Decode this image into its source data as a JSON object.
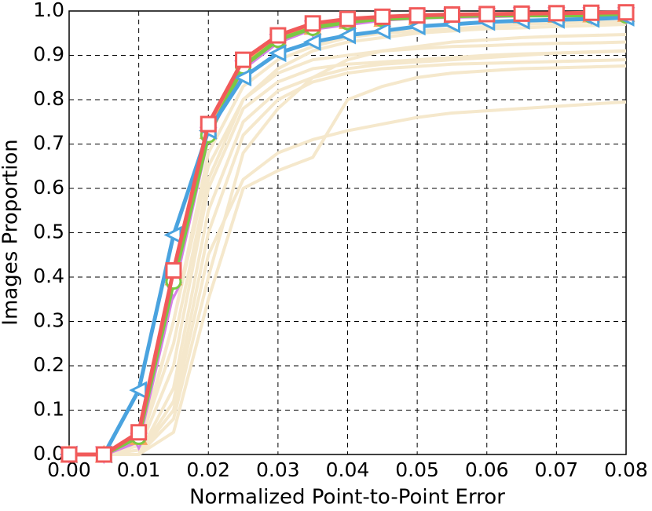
{
  "chart_data": {
    "type": "line",
    "x_label": "Normalized Point-to-Point Error",
    "y_label": "Images Proportion",
    "x": [
      0,
      0.005,
      0.01,
      0.015,
      0.02,
      0.025,
      0.03,
      0.035,
      0.04,
      0.045,
      0.05,
      0.055,
      0.06,
      0.065,
      0.07,
      0.075,
      0.08
    ],
    "xlim": [
      0,
      0.08
    ],
    "ylim": [
      0,
      1
    ],
    "xticks": [
      {
        "value": 0,
        "label": "0.00"
      },
      {
        "value": 0.01,
        "label": "0.01"
      },
      {
        "value": 0.02,
        "label": "0.02"
      },
      {
        "value": 0.03,
        "label": "0.03"
      },
      {
        "value": 0.04,
        "label": "0.04"
      },
      {
        "value": 0.05,
        "label": "0.05"
      },
      {
        "value": 0.06,
        "label": "0.06"
      },
      {
        "value": 0.07,
        "label": "0.07"
      },
      {
        "value": 0.08,
        "label": "0.08"
      }
    ],
    "yticks": [
      {
        "value": 0,
        "label": "0.0"
      },
      0.1,
      0.2,
      0.3,
      0.4,
      0.5,
      0.6,
      0.7,
      0.8,
      0.9,
      {
        "value": 1,
        "label": "1.0"
      }
    ],
    "grid": true,
    "series": [
      {
        "color": "#f5e8cc",
        "values": [
          0,
          0,
          0,
          0.1,
          0.45,
          0.62,
          0.68,
          0.71,
          0.73,
          0.745,
          0.76,
          0.77,
          0.775,
          0.78,
          0.785,
          0.79,
          0.795
        ]
      },
      {
        "color": "#f5e8cc",
        "values": [
          0,
          0,
          0,
          0.05,
          0.35,
          0.6,
          0.64,
          0.67,
          0.8,
          0.83,
          0.85,
          0.86,
          0.865,
          0.87,
          0.872,
          0.874,
          0.876
        ]
      },
      {
        "color": "#f5e8cc",
        "values": [
          0,
          0,
          0,
          0.15,
          0.55,
          0.75,
          0.82,
          0.85,
          0.87,
          0.88,
          0.885,
          0.89,
          0.895,
          0.9,
          0.905,
          0.908,
          0.91
        ]
      },
      {
        "color": "#f5e8cc",
        "values": [
          0,
          0,
          0.02,
          0.3,
          0.65,
          0.8,
          0.86,
          0.89,
          0.9,
          0.91,
          0.915,
          0.92,
          0.922,
          0.925,
          0.927,
          0.928,
          0.93
        ]
      },
      {
        "color": "#f5e8cc",
        "values": [
          0,
          0,
          0.01,
          0.2,
          0.6,
          0.78,
          0.84,
          0.87,
          0.88,
          0.885,
          0.89,
          0.895,
          0.9,
          0.903,
          0.905,
          0.907,
          0.91
        ]
      },
      {
        "color": "#f5e8cc",
        "values": [
          0,
          0,
          0.01,
          0.3,
          0.68,
          0.83,
          0.89,
          0.92,
          0.94,
          0.95,
          0.955,
          0.96,
          0.965,
          0.97,
          0.972,
          0.975,
          0.975
        ]
      },
      {
        "color": "#f5e8cc",
        "values": [
          0,
          0,
          0,
          0.12,
          0.5,
          0.72,
          0.8,
          0.84,
          0.86,
          0.87,
          0.875,
          0.88,
          0.882,
          0.884,
          0.886,
          0.888,
          0.89
        ]
      },
      {
        "color": "#f5e8cc",
        "values": [
          0,
          0,
          0.02,
          0.25,
          0.62,
          0.8,
          0.87,
          0.91,
          0.93,
          0.94,
          0.95,
          0.955,
          0.96,
          0.962,
          0.965,
          0.967,
          0.97
        ]
      },
      {
        "color": "#f5e8cc",
        "values": [
          0,
          0,
          0,
          0.08,
          0.4,
          0.68,
          0.78,
          0.85,
          0.89,
          0.91,
          0.92,
          0.93,
          0.935,
          0.94,
          0.943,
          0.945,
          0.947
        ]
      },
      {
        "color": "#d77fe6",
        "marker": "triangle-down",
        "values": [
          0,
          0,
          0.03,
          0.37,
          0.72,
          0.87,
          0.93,
          0.96,
          0.97,
          0.98,
          0.985,
          0.987,
          0.988,
          0.99,
          0.99,
          0.99,
          0.99
        ]
      },
      {
        "color": "#f7a35c",
        "marker": "triangle-up",
        "values": [
          0,
          0,
          0.04,
          0.4,
          0.73,
          0.88,
          0.94,
          0.965,
          0.978,
          0.983,
          0.987,
          0.99,
          0.99,
          0.991,
          0.992,
          0.993,
          0.994
        ]
      },
      {
        "color": "#7ac943",
        "marker": "circle",
        "values": [
          0,
          0,
          0.04,
          0.39,
          0.72,
          0.875,
          0.935,
          0.962,
          0.975,
          0.982,
          0.985,
          0.988,
          0.99,
          0.99,
          0.99,
          0.99,
          0.99
        ]
      },
      {
        "color": "#4aa3df",
        "marker": "triangle-left",
        "values": [
          0,
          0,
          0.145,
          0.495,
          0.73,
          0.85,
          0.905,
          0.93,
          0.945,
          0.955,
          0.965,
          0.97,
          0.975,
          0.978,
          0.98,
          0.982,
          0.985
        ]
      },
      {
        "color": "#f15a5a",
        "marker": "square",
        "values": [
          0,
          0,
          0.05,
          0.415,
          0.745,
          0.89,
          0.945,
          0.972,
          0.982,
          0.987,
          0.99,
          0.992,
          0.993,
          0.994,
          0.995,
          0.996,
          0.997
        ]
      }
    ]
  }
}
